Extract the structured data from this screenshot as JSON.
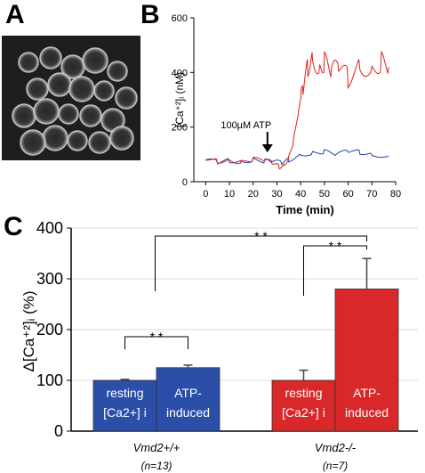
{
  "panels": {
    "a": "A",
    "b": "B",
    "c": "C"
  },
  "microscopy": {
    "description_icon": "fluorescence-micrograph"
  },
  "chart_data": [
    {
      "type": "line",
      "xlabel": "Time (min)",
      "ylabel": "[Ca⁺²]ᵢ (nM)",
      "xlim": [
        -5,
        80
      ],
      "ylim": [
        0,
        600
      ],
      "x_ticks": [
        0,
        10,
        20,
        30,
        40,
        50,
        60,
        70,
        80
      ],
      "y_ticks": [
        0,
        200,
        400,
        600
      ],
      "annotation": {
        "text": "100µM ATP",
        "x": 26
      },
      "grid": false,
      "series": [
        {
          "color": "#1f3fa8",
          "x": [
            0,
            5,
            10,
            15,
            20,
            25,
            28,
            32,
            35,
            40,
            45,
            50,
            55,
            60,
            65,
            70,
            77
          ],
          "values": [
            80,
            72,
            78,
            75,
            80,
            76,
            72,
            70,
            80,
            100,
            105,
            110,
            98,
            112,
            108,
            100,
            95
          ]
        },
        {
          "color": "#e02020",
          "x": [
            0,
            5,
            10,
            15,
            20,
            25,
            28,
            31,
            33,
            35,
            37,
            39,
            41,
            43,
            45,
            48,
            50,
            53,
            56,
            60,
            65,
            70,
            74,
            77
          ],
          "values": [
            85,
            75,
            80,
            72,
            82,
            78,
            70,
            55,
            62,
            90,
            150,
            250,
            340,
            420,
            460,
            410,
            440,
            400,
            420,
            380,
            430,
            410,
            440,
            420
          ]
        }
      ]
    },
    {
      "type": "bar",
      "ylabel": "Δ[Ca⁺²]ᵢ (%)",
      "ylim": [
        0,
        400
      ],
      "y_ticks": [
        0,
        100,
        200,
        300,
        400
      ],
      "grid": true,
      "groups": [
        {
          "label": "Vmd2+/+",
          "n": "(n=13)",
          "color": "#2b4fa8",
          "bars": [
            {
              "label_1": "resting",
              "label_2": "[Ca2+] i",
              "value": 100,
              "error": 2
            },
            {
              "label_1": "ATP-",
              "label_2": "induced",
              "value": 125,
              "error": 5
            }
          ]
        },
        {
          "label": "Vmd2-/-",
          "n": "(n=7)",
          "color": "#d8282a",
          "bars": [
            {
              "label_1": "resting",
              "label_2": "[Ca2+] i",
              "value": 100,
              "error": 20
            },
            {
              "label_1": "ATP-",
              "label_2": "induced",
              "value": 280,
              "error": 60
            }
          ]
        }
      ],
      "significance": [
        "* *",
        "* *",
        "* *"
      ]
    }
  ]
}
